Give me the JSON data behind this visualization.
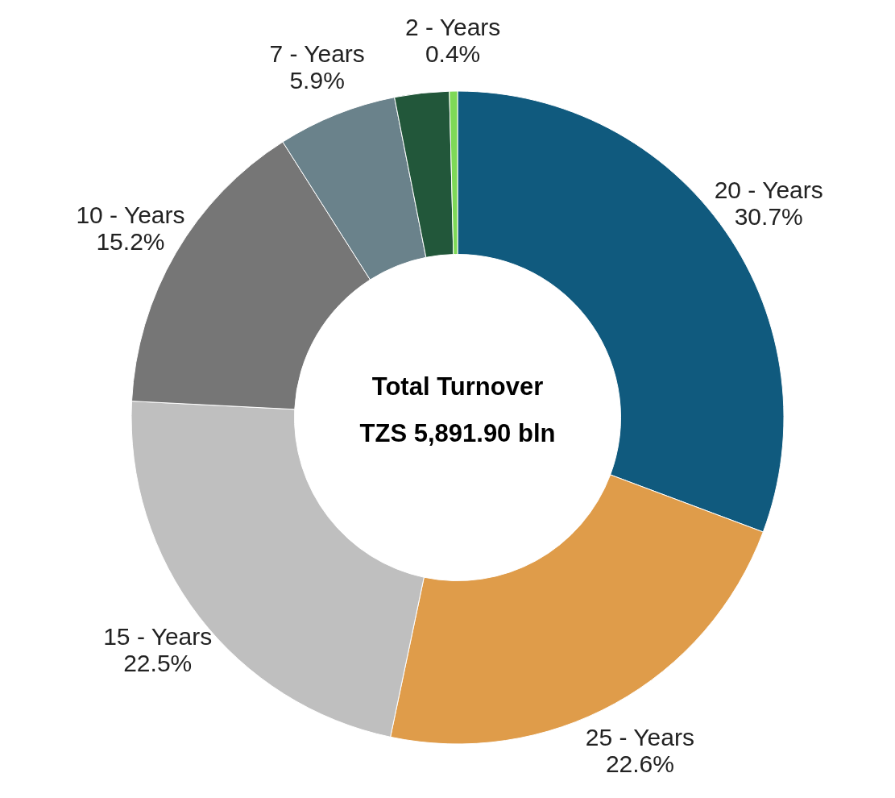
{
  "chart_data": {
    "type": "donut",
    "title": "Total Turnover",
    "subtitle": "TZS 5,891.90 bln",
    "categories": [
      "20 - Years",
      "25 - Years",
      "15 - Years",
      "10 - Years",
      "7 - Years",
      null,
      "2 - Years"
    ],
    "values": [
      30.7,
      22.6,
      22.5,
      15.2,
      5.9,
      2.7,
      0.4
    ],
    "value_labels": [
      "30.7%",
      "22.6%",
      "22.5%",
      "15.2%",
      "5.9%",
      null,
      "0.4%"
    ],
    "colors": [
      "#105a7e",
      "#df9c4a",
      "#bfbfbf",
      "#767676",
      "#6a828b",
      "#22573a",
      "#7ed957"
    ]
  }
}
